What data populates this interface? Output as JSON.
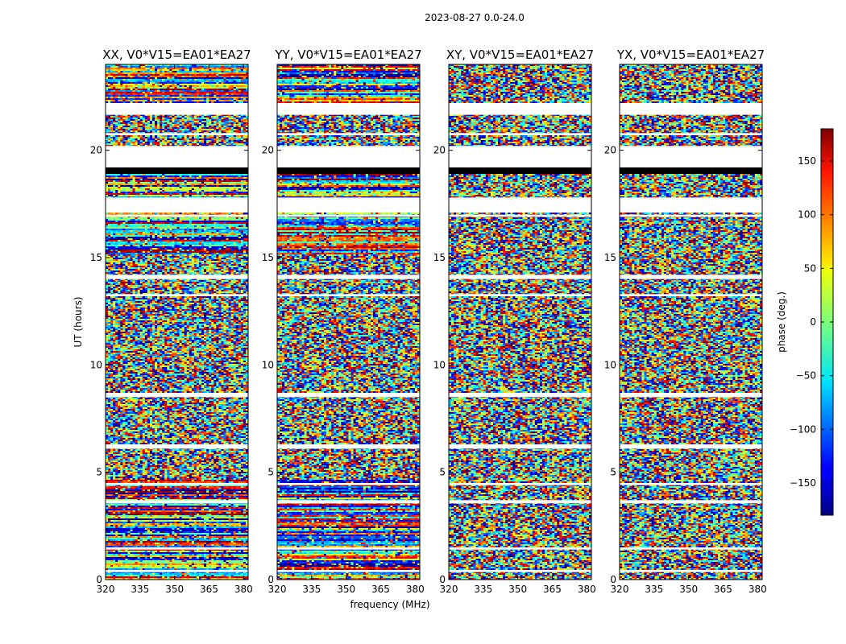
{
  "figure": {
    "suptitle": "2023-08-27 0.0-24.0",
    "ylabel": "UT (hours)",
    "xlabel": "frequency (MHz)"
  },
  "chart_data": {
    "type": "heatmap",
    "title": "2023-08-27 0.0-24.0",
    "xlabel": "frequency (MHz)",
    "ylabel": "UT (hours)",
    "xlim": [
      320,
      382
    ],
    "ylim": [
      0,
      24
    ],
    "x_ticks": [
      320,
      335,
      350,
      365,
      380
    ],
    "y_ticks": [
      0,
      5,
      10,
      15,
      20
    ],
    "panels": [
      {
        "title": "XX, V0*V15=EA01*EA27",
        "pol": "XX"
      },
      {
        "title": "YY, V0*V15=EA01*EA27",
        "pol": "YY"
      },
      {
        "title": "XY, V0*V15=EA01*EA27",
        "pol": "XY"
      },
      {
        "title": "YX, V0*V15=EA01*EA27",
        "pol": "YX"
      }
    ],
    "flagged_gaps_ut": [
      [
        0.35,
        0.45
      ],
      [
        1.4,
        1.5
      ],
      [
        3.55,
        3.7
      ],
      [
        4.4,
        4.5
      ],
      [
        6.1,
        6.3
      ],
      [
        8.5,
        8.7
      ],
      [
        13.2,
        13.3
      ],
      [
        14.0,
        14.2
      ],
      [
        16.9,
        17.0
      ],
      [
        17.1,
        17.8
      ],
      [
        19.2,
        20.2
      ],
      [
        20.7,
        20.8
      ],
      [
        21.65,
        22.2
      ]
    ],
    "black_bands_ut": [
      [
        18.9,
        19.2
      ]
    ],
    "colorbar": {
      "label": "phase (deg.)",
      "range": [
        -180,
        180
      ],
      "ticks": [
        150,
        100,
        50,
        0,
        -50,
        -100,
        -150
      ],
      "tick_labels": [
        "150",
        "100",
        "50",
        "0",
        "−50",
        "−100",
        "−150"
      ],
      "colormap": "jet"
    }
  }
}
